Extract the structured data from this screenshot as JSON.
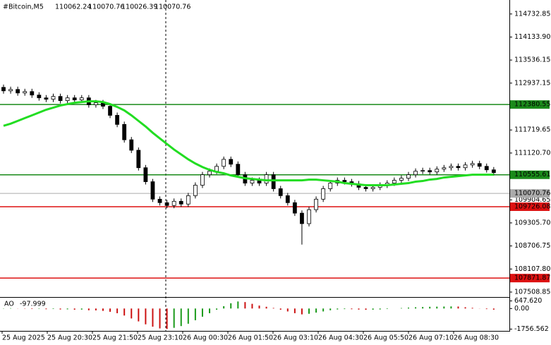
{
  "chart_data": [
    {
      "type": "candlestick",
      "title": "#Bitcoin,M5",
      "header_values": [
        110062.24,
        110070.76,
        110026.39,
        110070.76
      ],
      "open": [
        112827,
        112736,
        112772,
        112681,
        112718,
        112627,
        112554,
        112518,
        112591,
        112482,
        112554,
        112500,
        112554,
        112373,
        112427,
        112336,
        112100,
        111864,
        111465,
        111193,
        110739,
        110376,
        109922,
        109831,
        109758,
        109867,
        109795,
        110013,
        110285,
        110557,
        110648,
        110775,
        110957,
        110830,
        110557,
        110339,
        110412,
        110339,
        110557,
        110194,
        110013,
        109831,
        109559,
        109286,
        109649,
        109922,
        110194,
        110339,
        110412,
        110376,
        110321,
        110230,
        110194,
        110230,
        110285,
        110339,
        110412,
        110466,
        110557,
        110648,
        110666,
        110630,
        110702,
        110739,
        110775,
        110739,
        110811,
        110848,
        110775,
        110684
      ],
      "high": [
        112899,
        112845,
        112845,
        112790,
        112790,
        112700,
        112627,
        112663,
        112663,
        112627,
        112627,
        112627,
        112627,
        112500,
        112500,
        112409,
        112173,
        111937,
        111538,
        111265,
        110811,
        110448,
        109994,
        109904,
        109940,
        109940,
        110085,
        110358,
        110630,
        110721,
        110848,
        111029,
        111029,
        110902,
        110630,
        110485,
        110485,
        110630,
        110630,
        110267,
        110085,
        109904,
        109631,
        109722,
        109994,
        110267,
        110412,
        110485,
        110485,
        110448,
        110394,
        110303,
        110303,
        110358,
        110412,
        110485,
        110539,
        110630,
        110721,
        110739,
        110739,
        110775,
        110811,
        110848,
        110848,
        110884,
        110920,
        110920,
        110848,
        110757
      ],
      "low": [
        112663,
        112663,
        112609,
        112609,
        112554,
        112482,
        112445,
        112445,
        112409,
        112409,
        112427,
        112427,
        112300,
        112300,
        112264,
        112028,
        111792,
        111392,
        111120,
        110666,
        110303,
        109849,
        109758,
        109686,
        109686,
        109722,
        109722,
        109940,
        110212,
        110485,
        110575,
        110702,
        110757,
        110485,
        110267,
        110267,
        110267,
        110267,
        110121,
        109940,
        109758,
        109486,
        108742,
        109214,
        109577,
        109849,
        110121,
        110267,
        110303,
        110249,
        110158,
        110121,
        110121,
        110158,
        110212,
        110267,
        110339,
        110394,
        110485,
        110575,
        110557,
        110557,
        110630,
        110666,
        110666,
        110666,
        110739,
        110702,
        110612,
        110539
      ],
      "close": [
        112736,
        112772,
        112681,
        112718,
        112627,
        112554,
        112518,
        112591,
        112482,
        112554,
        112500,
        112554,
        112373,
        112427,
        112336,
        112100,
        111864,
        111465,
        111193,
        110739,
        110376,
        109922,
        109831,
        109758,
        109867,
        109795,
        110013,
        110285,
        110557,
        110648,
        110775,
        110957,
        110830,
        110557,
        110339,
        110412,
        110339,
        110557,
        110194,
        110013,
        109831,
        109559,
        109286,
        109649,
        109922,
        110194,
        110339,
        110412,
        110376,
        110321,
        110230,
        110194,
        110230,
        110285,
        110339,
        110412,
        110466,
        110557,
        110648,
        110666,
        110630,
        110702,
        110739,
        110775,
        110739,
        110811,
        110848,
        110775,
        110684,
        110612
      ],
      "ma": {
        "color": "#22dd22",
        "values": [
          111828,
          111883,
          111955,
          112028,
          112100,
          112173,
          112246,
          112300,
          112355,
          112391,
          112427,
          112445,
          112464,
          112464,
          112445,
          112391,
          112318,
          112228,
          112100,
          111955,
          111810,
          111647,
          111501,
          111356,
          111211,
          111084,
          110957,
          110848,
          110757,
          110684,
          110630,
          110594,
          110539,
          110503,
          110466,
          110448,
          110430,
          110412,
          110412,
          110412,
          110412,
          110412,
          110412,
          110430,
          110430,
          110412,
          110394,
          110376,
          110339,
          110321,
          110303,
          110285,
          110285,
          110285,
          110285,
          110303,
          110321,
          110339,
          110376,
          110394,
          110430,
          110448,
          110485,
          110503,
          110521,
          110539,
          110557,
          110557,
          110557,
          110557
        ]
      },
      "levels": [
        {
          "value": 112380.55,
          "color": "#1a8a1a"
        },
        {
          "value": 110555.61,
          "color": "#1a8a1a"
        },
        {
          "value": 109726.08,
          "color": "#dd1111"
        },
        {
          "value": 107871.87,
          "color": "#dd1111"
        }
      ],
      "current_price": {
        "value": 110070.76,
        "color": "#aaaaaa"
      },
      "ylim": [
        107380,
        115096
      ],
      "yticks": [
        114732.85,
        {
          "value": 114133.9,
          "label": "114133.90"
        },
        113536.15,
        112937.15,
        111719.65,
        {
          "value": 111120.7,
          "label": "111120.70"
        },
        109904.65,
        {
          "value": 109305.7,
          "label": "109305.70"
        },
        108706.75,
        {
          "value": 108107.8,
          "label": "108107.80"
        },
        107508.85
      ],
      "xtick_labels": [
        "25 Aug 2025",
        "25 Aug 20:30",
        "25 Aug 21:50",
        "25 Aug 23:10",
        "26 Aug 00:30",
        "26 Aug 01:50",
        "26 Aug 03:10",
        "26 Aug 04:30",
        "26 Aug 05:50",
        "26 Aug 07:10",
        "26 Aug 08:30"
      ]
    },
    {
      "type": "bar",
      "title": "AO",
      "up_color": "#1a9a1a",
      "down_color": "#cc1111",
      "values": [
        20,
        30,
        10,
        -20,
        -40,
        -30,
        -60,
        -40,
        -80,
        -70,
        -100,
        -90,
        -150,
        -160,
        -200,
        -280,
        -400,
        -600,
        -850,
        -1100,
        -1350,
        -1550,
        -1700,
        -1750,
        -1650,
        -1500,
        -1300,
        -1000,
        -700,
        -400,
        -100,
        200,
        450,
        600,
        550,
        400,
        250,
        150,
        50,
        -100,
        -250,
        -400,
        -500,
        -450,
        -350,
        -250,
        -150,
        -80,
        -50,
        -60,
        -90,
        -110,
        -100,
        -80,
        -40,
        0,
        40,
        80,
        110,
        130,
        150,
        160,
        170,
        180,
        170,
        110,
        60,
        10,
        -50,
        -97.999
      ],
      "ylim": [
        -1850,
        800
      ],
      "yticks": [
        {
          "value": 647.62,
          "label": "647.620"
        },
        {
          "value": 0,
          "label": "0.00"
        },
        -1756.562
      ]
    }
  ]
}
